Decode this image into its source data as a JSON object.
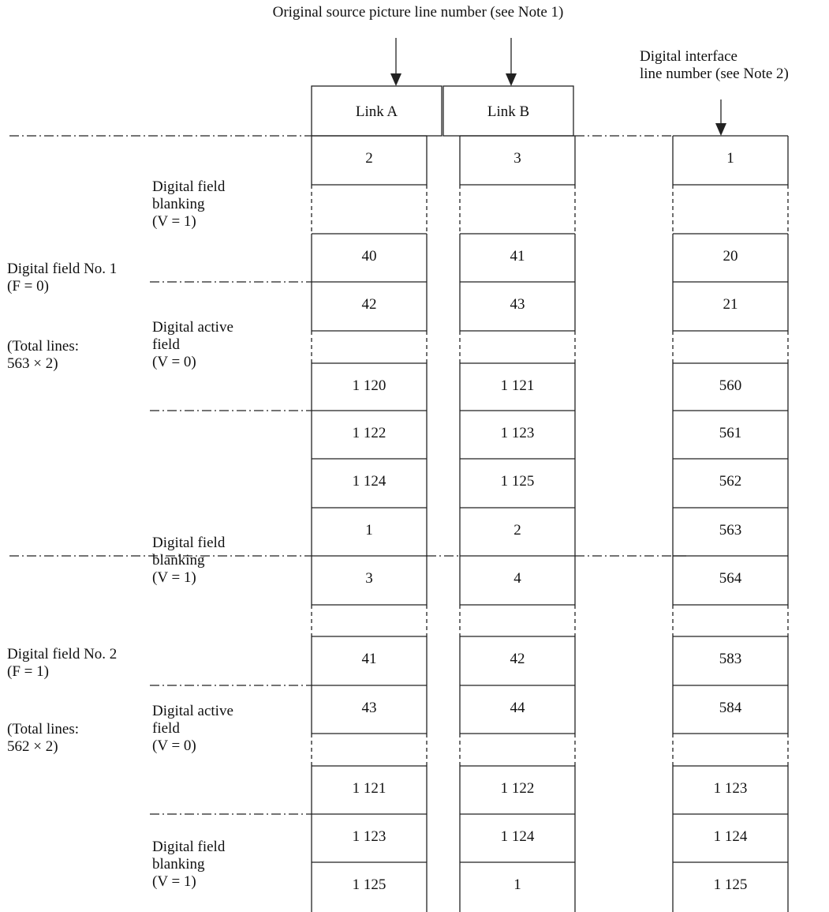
{
  "header": {
    "source_caption": "Original source picture line number (see Note 1)",
    "interface_caption": [
      "Digital interface",
      "line number (see Note 2)"
    ],
    "link_a": "Link A",
    "link_b": "Link B"
  },
  "left_labels": {
    "field1": [
      "Digital field No. 1",
      "(F = 0)"
    ],
    "field1_total": [
      "(Total lines:",
      "563 × 2)"
    ],
    "field2": [
      "Digital field No. 2",
      "(F = 1)"
    ],
    "field2_total": [
      "(Total lines:",
      "562 × 2)"
    ]
  },
  "mid_labels": {
    "blank1": [
      "Digital field",
      "blanking",
      "(V = 1)"
    ],
    "active1": [
      "Digital active",
      "field",
      "(V = 0)"
    ],
    "blank2": [
      "Digital field",
      "blanking",
      "(V = 1)"
    ],
    "active2": [
      "Digital active",
      "field",
      "(V = 0)"
    ],
    "blank3": [
      "Digital field",
      "blanking",
      "(V = 1)"
    ]
  },
  "rows": [
    {
      "a": "2",
      "b": "3",
      "c": "1"
    },
    {
      "gap": true
    },
    {
      "a": "40",
      "b": "41",
      "c": "20"
    },
    {
      "a": "42",
      "b": "43",
      "c": "21"
    },
    {
      "gap": true
    },
    {
      "a": "1 120",
      "b": "1 121",
      "c": "560"
    },
    {
      "a": "1 122",
      "b": "1 123",
      "c": "561"
    },
    {
      "a": "1 124",
      "b": "1 125",
      "c": "562"
    },
    {
      "a": "1",
      "b": "2",
      "c": "563"
    },
    {
      "a": "3",
      "b": "4",
      "c": "564"
    },
    {
      "gap": true
    },
    {
      "a": "41",
      "b": "42",
      "c": "583"
    },
    {
      "a": "43",
      "b": "44",
      "c": "584"
    },
    {
      "gap": true
    },
    {
      "a": "1 121",
      "b": "1 122",
      "c": "1 123"
    },
    {
      "a": "1 123",
      "b": "1 124",
      "c": "1 124"
    },
    {
      "a": "1 125",
      "b": "1",
      "c": "1 125"
    }
  ]
}
